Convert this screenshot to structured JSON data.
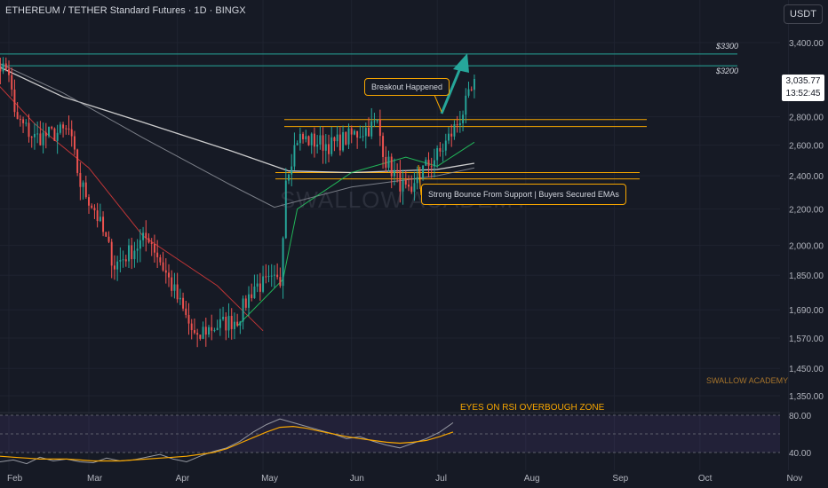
{
  "header": {
    "title": "ETHEREUM / TETHER Standard Futures · 1D · BINGX",
    "currency": "USDT"
  },
  "watermark": "SWALLOW ACADEMY",
  "author_label": "SWALLOW ACADEMY",
  "price_tag": {
    "price": "3,035.77",
    "countdown": "13:52:45"
  },
  "annotations": {
    "breakout": "Breakout Happened",
    "bounce": "Strong Bounce From Support | Buyers Secured EMAs",
    "rsi": "EYES ON RSI OVERBOUGH ZONE"
  },
  "levels": [
    {
      "label": "$3300",
      "price": 3300
    },
    {
      "label": "$3200",
      "price": 3200
    }
  ],
  "colors": {
    "background": "#161a25",
    "up": "#26a69a",
    "down": "#ef5350",
    "resistance": "#f7a600",
    "target": "#26a69a",
    "ema_green": "#22c55e",
    "ema_red": "#d23939",
    "ema_white": "#e0e0e0",
    "ema_grey": "#9598a1",
    "rsi_line": "#9598a1",
    "rsi_ma": "#f7a600",
    "rsi_band": "#7e57c2"
  },
  "chart_data": {
    "type": "candlestick",
    "symbol": "ETHEREUM / TETHER Standard Futures",
    "interval": "1D",
    "exchange": "BINGX",
    "x_labels": [
      "Feb",
      "Mar",
      "Apr",
      "May",
      "Jun",
      "Jul",
      "Aug",
      "Sep",
      "Oct",
      "Nov"
    ],
    "y_ticks": [
      3400,
      2800,
      2600,
      2400,
      2200,
      2000,
      1850,
      1690,
      1570,
      1450,
      1350
    ],
    "y_tick_labels": [
      "3,400.00",
      "2,800.00",
      "2,600.00",
      "2,400.00",
      "2,200.00",
      "2,000.00",
      "1,850.00",
      "1,690.00",
      "1,570.00",
      "1,450.00",
      "1,350.00"
    ],
    "y_scale": "log",
    "last_price": 3035.77,
    "anchor_points": [
      {
        "date": "2025-01-26",
        "price": 3250
      },
      {
        "date": "2025-02-01",
        "price": 3150
      },
      {
        "date": "2025-02-03",
        "price": 2800
      },
      {
        "date": "2025-02-10",
        "price": 2650
      },
      {
        "date": "2025-02-22",
        "price": 2700
      },
      {
        "date": "2025-02-26",
        "price": 2350
      },
      {
        "date": "2025-03-03",
        "price": 2200
      },
      {
        "date": "2025-03-10",
        "price": 1900
      },
      {
        "date": "2025-03-22",
        "price": 2050
      },
      {
        "date": "2025-03-30",
        "price": 1800
      },
      {
        "date": "2025-04-08",
        "price": 1550
      },
      {
        "date": "2025-04-10",
        "price": 1600
      },
      {
        "date": "2025-04-22",
        "price": 1650
      },
      {
        "date": "2025-04-28",
        "price": 1800
      },
      {
        "date": "2025-05-07",
        "price": 1820
      },
      {
        "date": "2025-05-09",
        "price": 2400
      },
      {
        "date": "2025-05-13",
        "price": 2650
      },
      {
        "date": "2025-05-25",
        "price": 2600
      },
      {
        "date": "2025-06-10",
        "price": 2750
      },
      {
        "date": "2025-06-13",
        "price": 2500
      },
      {
        "date": "2025-06-22",
        "price": 2250
      },
      {
        "date": "2025-06-24",
        "price": 2400
      },
      {
        "date": "2025-07-02",
        "price": 2550
      },
      {
        "date": "2025-07-08",
        "price": 2750
      },
      {
        "date": "2025-07-14",
        "price": 3035
      }
    ],
    "horizontal_levels": [
      {
        "label": "$3300",
        "price": 3300
      },
      {
        "label": "$3200",
        "price": 3200
      },
      {
        "price": 2780
      },
      {
        "price": 2730
      },
      {
        "price": 2420
      },
      {
        "price": 2380
      }
    ],
    "ema_curves": {
      "white": [
        [
          "2025-01-26",
          3220
        ],
        [
          "2025-02-20",
          2950
        ],
        [
          "2025-03-20",
          2760
        ],
        [
          "2025-04-20",
          2560
        ],
        [
          "2025-05-10",
          2430
        ],
        [
          "2025-06-01",
          2420
        ],
        [
          "2025-07-01",
          2440
        ],
        [
          "2025-07-14",
          2480
        ]
      ],
      "grey": [
        [
          "2025-01-26",
          3250
        ],
        [
          "2025-02-20",
          2980
        ],
        [
          "2025-03-20",
          2650
        ],
        [
          "2025-04-20",
          2340
        ],
        [
          "2025-05-05",
          2210
        ],
        [
          "2025-06-01",
          2330
        ],
        [
          "2025-07-01",
          2400
        ],
        [
          "2025-07-14",
          2450
        ]
      ],
      "red": [
        [
          "2025-01-26",
          3100
        ],
        [
          "2025-02-10",
          2750
        ],
        [
          "2025-03-01",
          2450
        ],
        [
          "2025-03-20",
          2050
        ],
        [
          "2025-04-15",
          1800
        ],
        [
          "2025-05-01",
          1600
        ]
      ],
      "green": [
        [
          "2025-04-22",
          1620
        ],
        [
          "2025-05-08",
          1830
        ],
        [
          "2025-05-13",
          2200
        ],
        [
          "2025-06-01",
          2420
        ],
        [
          "2025-06-20",
          2520
        ],
        [
          "2025-07-01",
          2460
        ],
        [
          "2025-07-14",
          2620
        ]
      ]
    },
    "rsi": {
      "ticks": [
        80,
        40
      ],
      "tick_labels": [
        "80.00",
        "40.00"
      ],
      "line_values": [
        30,
        32,
        28,
        35,
        31,
        33,
        30,
        29,
        34,
        31,
        32,
        35,
        38,
        33,
        30,
        36,
        41,
        45,
        52,
        62,
        70,
        76,
        72,
        68,
        64,
        60,
        55,
        57,
        52,
        48,
        45,
        50,
        55,
        62,
        72
      ],
      "ma_values": [
        36,
        35,
        34,
        33,
        33,
        33,
        32,
        31,
        31,
        31,
        32,
        33,
        34,
        35,
        36,
        38,
        40,
        44,
        50,
        56,
        62,
        67,
        68,
        66,
        63,
        60,
        57,
        55,
        53,
        51,
        50,
        51,
        53,
        57,
        62
      ]
    }
  }
}
